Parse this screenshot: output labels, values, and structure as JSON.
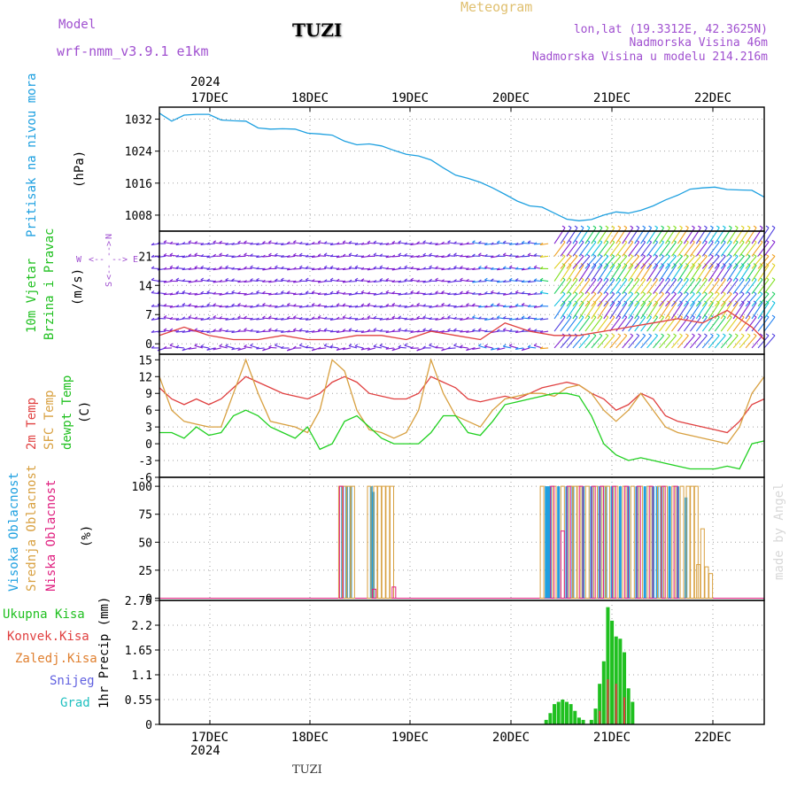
{
  "header": {
    "model_label": "Model",
    "model_name": "wrf-nmm_v3.9.1  e1km",
    "station": "TUZI",
    "meteogram": "Meteogram",
    "lonlat": "lon,lat (19.3312E, 42.3625N)",
    "elevation": "Nadmorska Visina 46m",
    "model_elevation": "Nadmorska Visina u modelu 214.216m",
    "year_top": "2024",
    "year_bottom": "2024",
    "footer_station": "TUZI",
    "credit": "made by Angel",
    "colors": {
      "model": "#a050d0",
      "meteogram": "#e0c070",
      "info": "#a050d0",
      "station": "#000000"
    }
  },
  "axis_titles": {
    "pressure": [
      "Pritisak na nivou mora",
      "(hPa)"
    ],
    "wind": [
      "10m Vjetar",
      "Brzina i Pravac",
      "(m/s)"
    ],
    "compass": {
      "n": "N",
      "e": "E",
      "w": "W",
      "s": "S",
      "arrow_left": "<--",
      "arrow_right": "-->",
      "arrow_down": "<--",
      "arrow_up": "-->"
    },
    "temp": [
      "2m Temp",
      "SFC Temp",
      "dewpt Temp",
      "(C)"
    ],
    "cloud": [
      "Visoka Oblacnost",
      "Srednja Oblacnost",
      "Niska Oblacnost",
      "(%)"
    ],
    "precip_legend": [
      "Ukupna Kisa",
      "Konvek.Kisa",
      "Zaledj.Kisa",
      "Snijeg",
      "Grad"
    ],
    "precip_unit": "1hr Precip (mm)"
  },
  "chart_data": [
    {
      "type": "line",
      "title": "Pritisak na nivou mora",
      "ylabel": "(hPa)",
      "x_ticks": [
        "17DEC",
        "18DEC",
        "19DEC",
        "20DEC",
        "21DEC",
        "22DEC"
      ],
      "yticks": [
        "1008",
        "1016",
        "1024",
        "1032"
      ],
      "ylim": [
        1004,
        1035
      ],
      "x": [
        0,
        3,
        6,
        9,
        12,
        15,
        18,
        21,
        24,
        27,
        30,
        33,
        36,
        39,
        42,
        45,
        48,
        51,
        54,
        57,
        60,
        63,
        66,
        69,
        72,
        75,
        78,
        81,
        84,
        87,
        90,
        93,
        96,
        99,
        102,
        105,
        108,
        111,
        114,
        117,
        120,
        123,
        126,
        129,
        132,
        135,
        138,
        141,
        144,
        147
      ],
      "series": [
        {
          "name": "",
          "color": "#1ea0e0",
          "values": [
            1033.5,
            1031.5,
            1033.0,
            1033.2,
            1033.2,
            1031.8,
            1031.6,
            1031.5,
            1029.8,
            1029.5,
            1029.6,
            1029.5,
            1028.5,
            1028.3,
            1028.0,
            1026.5,
            1025.6,
            1025.8,
            1025.3,
            1024.2,
            1023.2,
            1022.8,
            1021.8,
            1019.8,
            1018.0,
            1017.2,
            1016.2,
            1014.8,
            1013.2,
            1011.5,
            1010.3,
            1010.0,
            1008.5,
            1007.0,
            1006.6,
            1006.9,
            1008.0,
            1008.8,
            1008.5,
            1009.2,
            1010.3,
            1011.8,
            1013.0,
            1014.5,
            1014.8,
            1015.0,
            1014.4,
            1014.3,
            1014.2,
            1012.5
          ]
        }
      ]
    },
    {
      "type": "other",
      "title": "10m Vjetar Brzina i Pravac",
      "ylabel": "(m/s)",
      "yticks": [
        "0",
        "7",
        "14",
        "21"
      ],
      "ylim": [
        -2.5,
        27
      ],
      "levels": [
        -1,
        3,
        6,
        9,
        12,
        15,
        18,
        21,
        24
      ],
      "speed_line": {
        "color": "#e04040",
        "x": [
          0,
          6,
          12,
          18,
          24,
          30,
          36,
          42,
          48,
          54,
          60,
          66,
          72,
          78,
          84,
          90,
          96,
          102,
          108,
          114,
          120,
          126,
          132,
          138,
          144,
          147
        ],
        "values": [
          2,
          4,
          2,
          1,
          1,
          2,
          1,
          1,
          2,
          2,
          1,
          3,
          2,
          1,
          5,
          3,
          2,
          2,
          3,
          4,
          5,
          6,
          5,
          8,
          4,
          1
        ]
      }
    },
    {
      "type": "line",
      "title": "2m Temp / SFC Temp / dewpt Temp",
      "ylabel": "(C)",
      "yticks": [
        "-6",
        "-3",
        "0",
        "3",
        "6",
        "9",
        "12",
        "15"
      ],
      "ylim": [
        -6,
        16
      ],
      "x": [
        0,
        3,
        6,
        9,
        12,
        15,
        18,
        21,
        24,
        27,
        30,
        33,
        36,
        39,
        42,
        45,
        48,
        51,
        54,
        57,
        60,
        63,
        66,
        69,
        72,
        75,
        78,
        81,
        84,
        87,
        90,
        93,
        96,
        99,
        102,
        105,
        108,
        111,
        114,
        117,
        120,
        123,
        126,
        129,
        132,
        135,
        138,
        141,
        144,
        147
      ],
      "series": [
        {
          "name": "2m Temp",
          "color": "#e04040",
          "values": [
            10,
            8,
            7,
            8,
            7,
            8,
            10,
            12,
            11,
            10,
            9,
            8.5,
            8,
            9,
            11,
            12,
            11,
            9,
            8.5,
            8,
            8,
            9,
            12,
            11,
            10,
            8,
            7.5,
            8,
            8.5,
            8,
            9,
            10,
            10.5,
            11,
            10.5,
            9,
            8,
            6,
            7,
            9,
            8,
            5,
            4,
            3.5,
            3,
            2.5,
            2,
            4,
            7,
            8
          ]
        },
        {
          "name": "SFC Temp",
          "color": "#d8a040",
          "values": [
            12,
            6,
            4,
            3.5,
            3,
            3,
            9,
            15,
            9,
            4,
            3.5,
            3,
            2,
            6,
            15,
            13,
            6,
            2.5,
            2,
            1,
            2,
            6,
            15,
            9,
            5,
            4,
            3,
            6,
            8,
            8.5,
            9,
            9,
            8.5,
            10,
            10.5,
            9,
            6,
            4,
            6,
            9,
            6,
            3,
            2,
            1.5,
            1,
            0.5,
            0,
            3,
            9,
            12
          ]
        },
        {
          "name": "dewpt Temp",
          "color": "#20d020",
          "values": [
            2,
            2,
            1,
            3,
            1.5,
            2,
            5,
            6,
            5,
            3,
            2,
            1,
            3,
            -1,
            0,
            4,
            5,
            3,
            1,
            0,
            0,
            0,
            2,
            5,
            5,
            2,
            1.5,
            4,
            7,
            7.5,
            8,
            8.5,
            9,
            9,
            8.5,
            5,
            0,
            -2,
            -3,
            -2.5,
            -3,
            -3.5,
            -4,
            -4.5,
            -4.5,
            -4.5,
            -4,
            -4.5,
            0,
            0.5
          ]
        }
      ]
    },
    {
      "type": "bar",
      "title": "Visoka / Srednja / Niska Oblacnost",
      "ylabel": "(%)",
      "yticks": [
        "0",
        "25",
        "50",
        "75",
        "100"
      ],
      "ylim": [
        0,
        100
      ],
      "series": [
        {
          "name": "Visoka Oblacnost",
          "color": "#20a0e0",
          "x": [
            44.5,
            45.5,
            46.5,
            51.5,
            52,
            94,
            94.5,
            95,
            97,
            99,
            100.5,
            103,
            105,
            107,
            108.5,
            110,
            112,
            114,
            116,
            118,
            120,
            121,
            122,
            124,
            126,
            128
          ],
          "values": [
            100,
            100,
            100,
            100,
            95,
            100,
            100,
            100,
            100,
            100,
            100,
            100,
            100,
            100,
            100,
            100,
            100,
            100,
            100,
            100,
            100,
            100,
            100,
            100,
            100,
            90
          ]
        },
        {
          "name": "Srednja Oblacnost",
          "color": "#d8a040",
          "x": [
            44,
            45,
            46,
            47,
            51,
            52.5,
            53.5,
            54.5,
            55.5,
            56.5,
            93,
            96,
            98,
            100,
            101,
            102,
            104,
            106,
            108,
            109,
            111,
            113,
            115,
            117,
            119,
            121.5,
            123,
            125,
            127,
            128.5,
            129.5,
            130.5,
            131,
            132,
            133,
            134
          ],
          "values": [
            100,
            100,
            100,
            100,
            100,
            100,
            100,
            100,
            100,
            100,
            100,
            100,
            100,
            100,
            100,
            100,
            100,
            100,
            100,
            100,
            100,
            100,
            100,
            100,
            100,
            100,
            100,
            100,
            100,
            100,
            100,
            100,
            30,
            62,
            28,
            22
          ]
        },
        {
          "name": "Niska Oblacnost",
          "color": "#e02080",
          "x": [
            44.2,
            52.2,
            57,
            95.5,
            98,
            99.5,
            102.5,
            105.5,
            107.5,
            110.5,
            113.5,
            116.5,
            119.5,
            122.5,
            125.5
          ],
          "values": [
            100,
            8,
            10,
            100,
            60,
            100,
            100,
            100,
            100,
            100,
            100,
            100,
            100,
            100,
            100
          ]
        }
      ]
    },
    {
      "type": "bar",
      "title": "1hr Precip",
      "ylabel": "1hr Precip (mm)",
      "yticks": [
        "0",
        "0.55",
        "1.1",
        "1.65",
        "2.2",
        "2.75"
      ],
      "ylim": [
        0,
        2.75
      ],
      "series": [
        {
          "name": "Ukupna Kisa",
          "color": "#20c020",
          "x": [
            94,
            95,
            96,
            97,
            98,
            99,
            100,
            101,
            102,
            103,
            105,
            106,
            107,
            108,
            109,
            110,
            111,
            112,
            113,
            114,
            115
          ],
          "values": [
            0.1,
            0.25,
            0.45,
            0.5,
            0.55,
            0.5,
            0.45,
            0.3,
            0.15,
            0.1,
            0.1,
            0.35,
            0.9,
            1.4,
            2.6,
            2.3,
            1.95,
            1.9,
            1.6,
            0.8,
            0.5
          ]
        },
        {
          "name": "Konvek.Kisa",
          "color": "#e04040",
          "x": [
            107,
            109,
            111,
            113
          ],
          "values": [
            0.3,
            1.0,
            0.9,
            0.6
          ]
        },
        {
          "name": "Zaledj.Kisa",
          "color": "#e08030",
          "x": [],
          "values": []
        },
        {
          "name": "Snijeg",
          "color": "#6060e0",
          "x": [],
          "values": []
        },
        {
          "name": "Grad",
          "color": "#20c0c0",
          "x": [],
          "values": []
        }
      ]
    }
  ]
}
